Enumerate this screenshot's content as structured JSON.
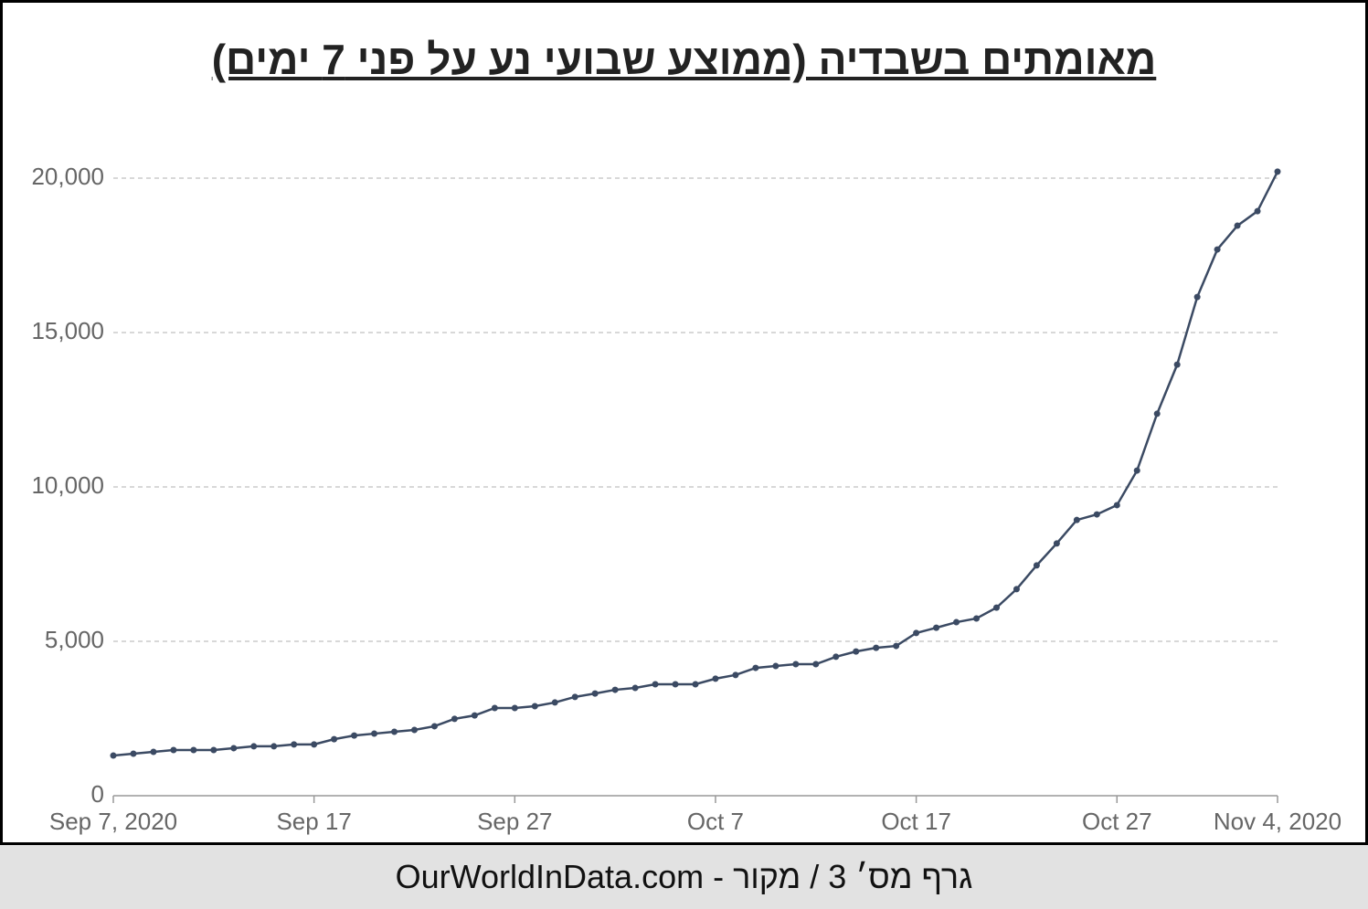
{
  "chart_data": {
    "type": "line",
    "title": "מאומתים בשבדיה (ממוצע שבועי נע על פני 7 ימים)",
    "footer": "גרף מס׳ 3 / מקור - OurWorldInData.com",
    "categories": [
      "Sep 7, 2020",
      null,
      null,
      null,
      null,
      null,
      null,
      null,
      null,
      null,
      "Sep 17",
      null,
      null,
      null,
      null,
      null,
      null,
      null,
      null,
      null,
      "Sep 27",
      null,
      null,
      null,
      null,
      null,
      null,
      null,
      null,
      null,
      "Oct 7",
      null,
      null,
      null,
      null,
      null,
      null,
      null,
      null,
      null,
      "Oct 17",
      null,
      null,
      null,
      null,
      null,
      null,
      null,
      null,
      null,
      "Oct 27",
      null,
      null,
      null,
      null,
      null,
      null,
      null,
      "Nov 4, 2020"
    ],
    "series": [
      {
        "name": "Sweden",
        "color": "#3b4a63",
        "values": [
          1300,
          1360,
          1420,
          1480,
          1480,
          1480,
          1540,
          1600,
          1600,
          1660,
          1660,
          1830,
          1950,
          2010,
          2070,
          2130,
          2250,
          2490,
          2600,
          2840,
          2840,
          2900,
          3020,
          3200,
          3310,
          3430,
          3490,
          3610,
          3610,
          3610,
          3790,
          3910,
          4140,
          4200,
          4260,
          4260,
          4500,
          4670,
          4790,
          4850,
          5270,
          5440,
          5620,
          5740,
          6090,
          6690,
          7460,
          8170,
          8930,
          9110,
          9410,
          10530,
          12370,
          13960,
          16150,
          17690,
          18460,
          18930,
          20210
        ]
      }
    ],
    "ylim": [
      0,
      20000
    ],
    "yticks": [
      0,
      {
        "value": 5000,
        "label": "5,000"
      },
      {
        "value": 10000,
        "label": "10,000"
      },
      {
        "value": 15000,
        "label": "15,000"
      },
      {
        "value": 20000,
        "label": "20,000"
      }
    ],
    "grid": true
  }
}
